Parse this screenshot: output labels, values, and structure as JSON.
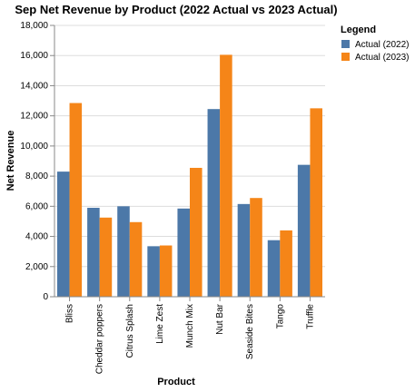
{
  "chart_data": {
    "type": "bar",
    "title": "Sep Net Revenue by Product (2022 Actual vs 2023 Actual)",
    "xlabel": "Product",
    "ylabel": "Net Revenue",
    "ylim": [
      0,
      18000
    ],
    "yticks": [
      0,
      2000,
      4000,
      6000,
      8000,
      10000,
      12000,
      14000,
      16000,
      18000
    ],
    "ytick_labels": [
      "0",
      "2,000",
      "4,000",
      "6,000",
      "8,000",
      "10,000",
      "12,000",
      "14,000",
      "16,000",
      "18,000"
    ],
    "grid": true,
    "categories": [
      "Bliss",
      "Cheddar poppers",
      "Citrus Splash",
      "Lime Zest",
      "Munch Mix",
      "Nut Bar",
      "Seaside Bites",
      "Tango",
      "Truffle"
    ],
    "series": [
      {
        "name": "Actual (2022)",
        "color": "#4c78a8",
        "values": [
          8300,
          5900,
          6000,
          3350,
          5850,
          12450,
          6150,
          3750,
          8750
        ]
      },
      {
        "name": "Actual (2023)",
        "color": "#f58518",
        "values": [
          12850,
          5250,
          4950,
          3400,
          8550,
          16050,
          6550,
          4400,
          12500
        ]
      }
    ],
    "legend": {
      "title": "Legend",
      "position": "top-right"
    }
  }
}
